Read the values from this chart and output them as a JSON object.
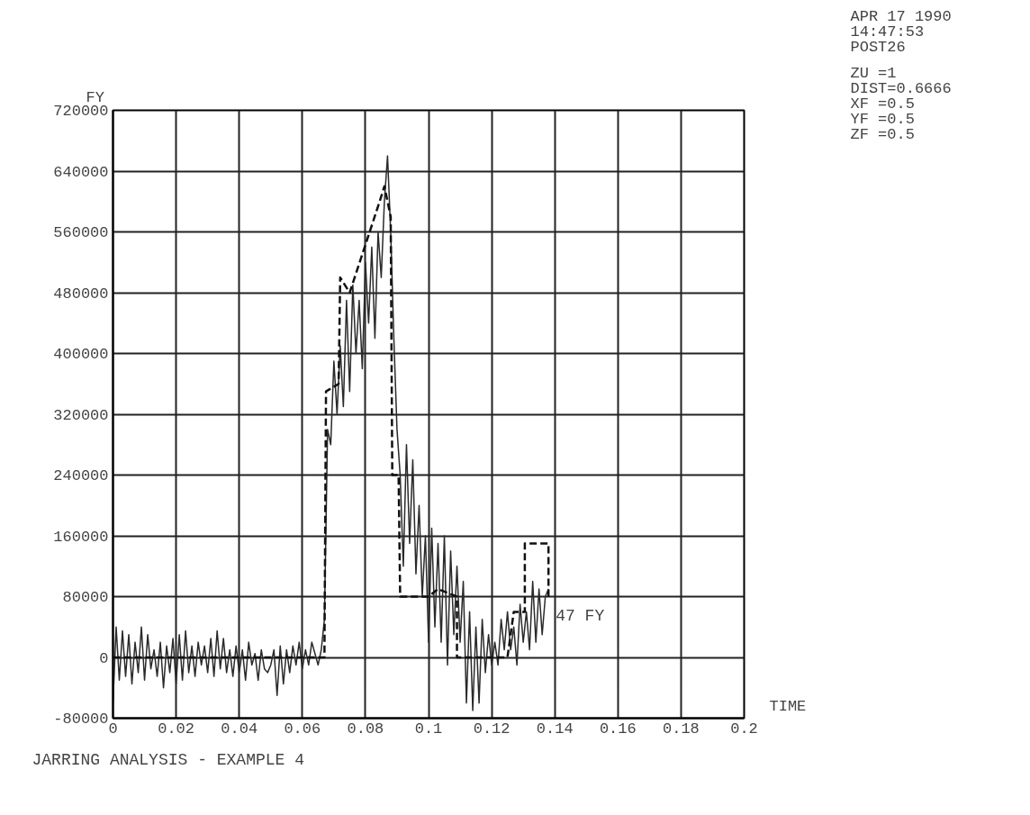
{
  "chart_data": {
    "type": "line",
    "title": "JARRING ANALYSIS - EXAMPLE 4",
    "xlabel": "TIME",
    "ylabel": "FY",
    "xlim": [
      0,
      0.2
    ],
    "ylim": [
      -80000,
      720000
    ],
    "xticks": [
      0,
      0.02,
      0.04,
      0.06,
      0.08,
      0.1,
      0.12,
      0.14,
      0.16,
      0.18,
      0.2
    ],
    "yticks": [
      -80000,
      0,
      80000,
      160000,
      240000,
      320000,
      400000,
      480000,
      560000,
      640000,
      720000
    ],
    "grid": true,
    "marker": "none",
    "annotations": [
      "47   FY",
      "APR 17 1990",
      "14:47:53",
      "POST26",
      "ZU   =1",
      "DIST=0.6666",
      "XF   =0.5",
      "YF   =0.5",
      "ZF   =0.5"
    ],
    "series": [
      {
        "color": "#2a2a2a",
        "line_style": "solid",
        "x": [
          0,
          0.001,
          0.002,
          0.003,
          0.004,
          0.005,
          0.006,
          0.007,
          0.008,
          0.009,
          0.01,
          0.011,
          0.012,
          0.013,
          0.014,
          0.015,
          0.016,
          0.017,
          0.018,
          0.019,
          0.02,
          0.021,
          0.022,
          0.023,
          0.024,
          0.025,
          0.026,
          0.027,
          0.028,
          0.029,
          0.03,
          0.031,
          0.032,
          0.033,
          0.034,
          0.035,
          0.036,
          0.037,
          0.038,
          0.039,
          0.04,
          0.041,
          0.042,
          0.043,
          0.044,
          0.045,
          0.046,
          0.047,
          0.048,
          0.049,
          0.05,
          0.051,
          0.052,
          0.053,
          0.054,
          0.055,
          0.056,
          0.057,
          0.058,
          0.059,
          0.06,
          0.061,
          0.062,
          0.063,
          0.064,
          0.065,
          0.066,
          0.067,
          0.068,
          0.069,
          0.07,
          0.071,
          0.072,
          0.073,
          0.074,
          0.075,
          0.076,
          0.077,
          0.078,
          0.079,
          0.08,
          0.081,
          0.082,
          0.083,
          0.084,
          0.085,
          0.086,
          0.087,
          0.088,
          0.089,
          0.09,
          0.091,
          0.092,
          0.093,
          0.094,
          0.095,
          0.096,
          0.097,
          0.098,
          0.099,
          0.1,
          0.101,
          0.102,
          0.103,
          0.104,
          0.105,
          0.106,
          0.107,
          0.108,
          0.109,
          0.11,
          0.111,
          0.112,
          0.113,
          0.114,
          0.115,
          0.116,
          0.117,
          0.118,
          0.119,
          0.12,
          0.121,
          0.122,
          0.123,
          0.124,
          0.125,
          0.126,
          0.127,
          0.128,
          0.129,
          0.13,
          0.131,
          0.132,
          0.133,
          0.134,
          0.135,
          0.136,
          0.137,
          0.138
        ],
        "values": [
          -60000,
          40000,
          -30000,
          35000,
          -25000,
          30000,
          -35000,
          20000,
          -20000,
          40000,
          -30000,
          30000,
          -15000,
          10000,
          -25000,
          20000,
          -40000,
          15000,
          -20000,
          25000,
          -35000,
          30000,
          -30000,
          35000,
          -20000,
          15000,
          -25000,
          20000,
          -10000,
          15000,
          -20000,
          25000,
          -25000,
          35000,
          -15000,
          25000,
          -20000,
          10000,
          -25000,
          15000,
          -20000,
          10000,
          -30000,
          20000,
          -10000,
          5000,
          -30000,
          10000,
          -15000,
          -20000,
          -10000,
          10000,
          -50000,
          15000,
          -35000,
          10000,
          -20000,
          15000,
          -10000,
          20000,
          -15000,
          10000,
          -10000,
          20000,
          5000,
          -10000,
          10000,
          50000,
          300000,
          280000,
          390000,
          320000,
          410000,
          330000,
          470000,
          350000,
          490000,
          400000,
          470000,
          380000,
          520000,
          440000,
          540000,
          420000,
          560000,
          500000,
          600000,
          660000,
          560000,
          420000,
          300000,
          240000,
          120000,
          280000,
          150000,
          260000,
          110000,
          200000,
          80000,
          160000,
          20000,
          170000,
          40000,
          150000,
          20000,
          160000,
          -10000,
          140000,
          30000,
          120000,
          20000,
          100000,
          -60000,
          60000,
          -70000,
          40000,
          -60000,
          50000,
          -20000,
          30000,
          -10000,
          20000,
          -10000,
          50000,
          10000,
          60000,
          10000,
          40000,
          -10000,
          70000,
          20000,
          60000,
          10000,
          100000,
          20000,
          90000,
          30000,
          80000,
          90000
        ]
      },
      {
        "color": "#111111",
        "line_style": "dashed",
        "x": [
          0,
          0.067,
          0.0675,
          0.0715,
          0.072,
          0.075,
          0.0845,
          0.086,
          0.088,
          0.0885,
          0.0905,
          0.091,
          0.1,
          0.103,
          0.109,
          0.109,
          0.118,
          0.125,
          0.127,
          0.1305,
          0.1305,
          0.138,
          0.138
        ],
        "values": [
          0,
          0,
          350000,
          360000,
          500000,
          480000,
          600000,
          620000,
          580000,
          240000,
          240000,
          80000,
          80000,
          90000,
          80000,
          0,
          0,
          0,
          60000,
          60000,
          150000,
          150000,
          80000
        ]
      }
    ]
  }
}
